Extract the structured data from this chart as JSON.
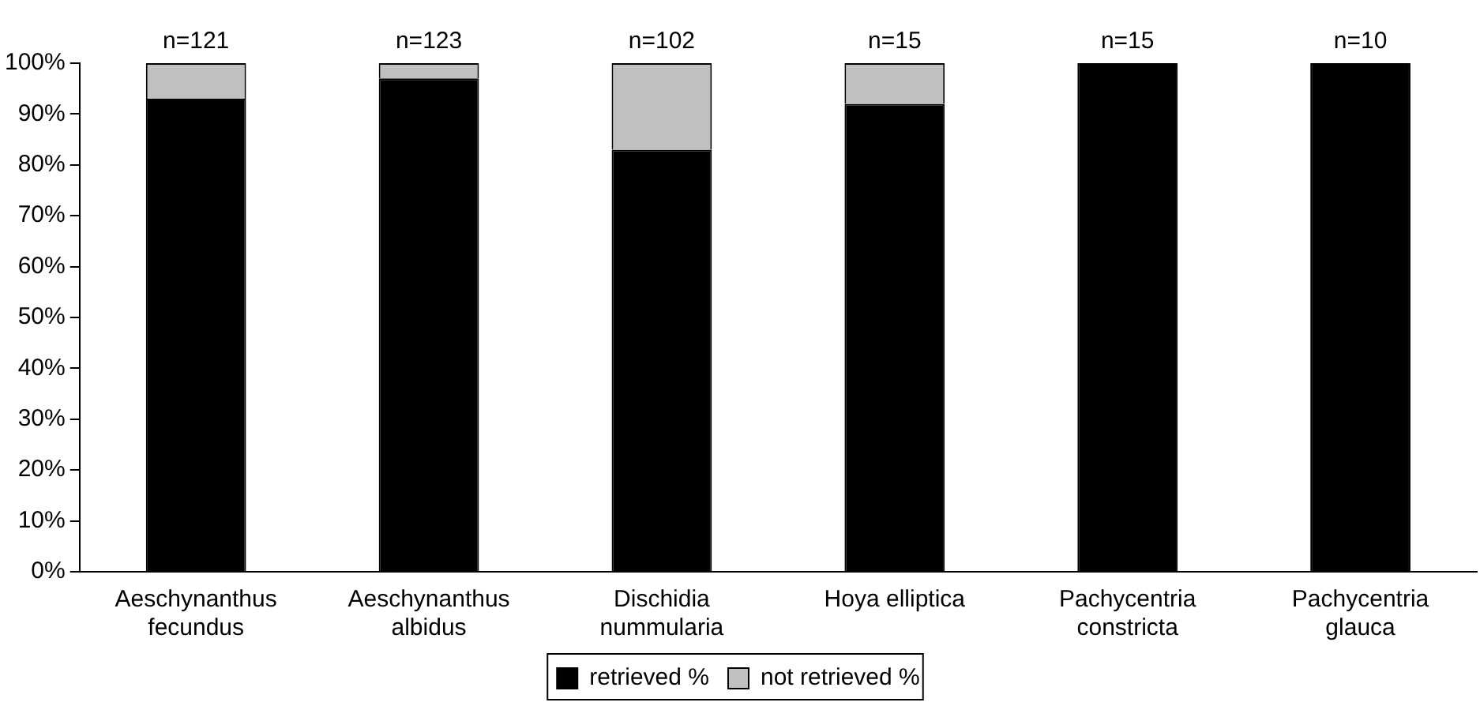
{
  "chart_data": {
    "type": "bar",
    "stacked": true,
    "categories": [
      "Aeschynanthus fecundus",
      "Aeschynanthus albidus",
      "Dischidia nummularia",
      "Hoya elliptica",
      "Pachycentria constricta",
      "Pachycentria glauca"
    ],
    "series": [
      {
        "name": "retrieved %",
        "color": "#000000",
        "values": [
          93,
          97,
          83,
          92,
          100,
          100
        ]
      },
      {
        "name": "not retrieved %",
        "color": "#c0c0c0",
        "values": [
          7,
          3,
          17,
          8,
          0,
          0
        ]
      }
    ],
    "ylim": [
      0,
      100
    ],
    "yticks": [
      {
        "value": 0,
        "label": "0%"
      },
      {
        "value": 10,
        "label": "10%"
      },
      {
        "value": 20,
        "label": "20%"
      },
      {
        "value": 30,
        "label": "30%"
      },
      {
        "value": 40,
        "label": "40%"
      },
      {
        "value": 50,
        "label": "50%"
      },
      {
        "value": 60,
        "label": "60%"
      },
      {
        "value": 70,
        "label": "70%"
      },
      {
        "value": 80,
        "label": "80%"
      },
      {
        "value": 90,
        "label": "90%"
      },
      {
        "value": 100,
        "label": "100%"
      }
    ],
    "grid": false,
    "legend": "bottom",
    "annotations": [
      {
        "text": "n=121",
        "x": "Aeschynanthus fecundus",
        "y": 100
      },
      {
        "text": "n=123",
        "x": "Aeschynanthus albidus",
        "y": 100
      },
      {
        "text": "n=102",
        "x": "Dischidia nummularia",
        "y": 100
      },
      {
        "text": "n=15",
        "x": "Hoya elliptica",
        "y": 100
      },
      {
        "text": "n=15",
        "x": "Pachycentria constricta",
        "y": 100
      },
      {
        "text": "n=10",
        "x": "Pachycentria glauca",
        "y": 100
      }
    ]
  }
}
